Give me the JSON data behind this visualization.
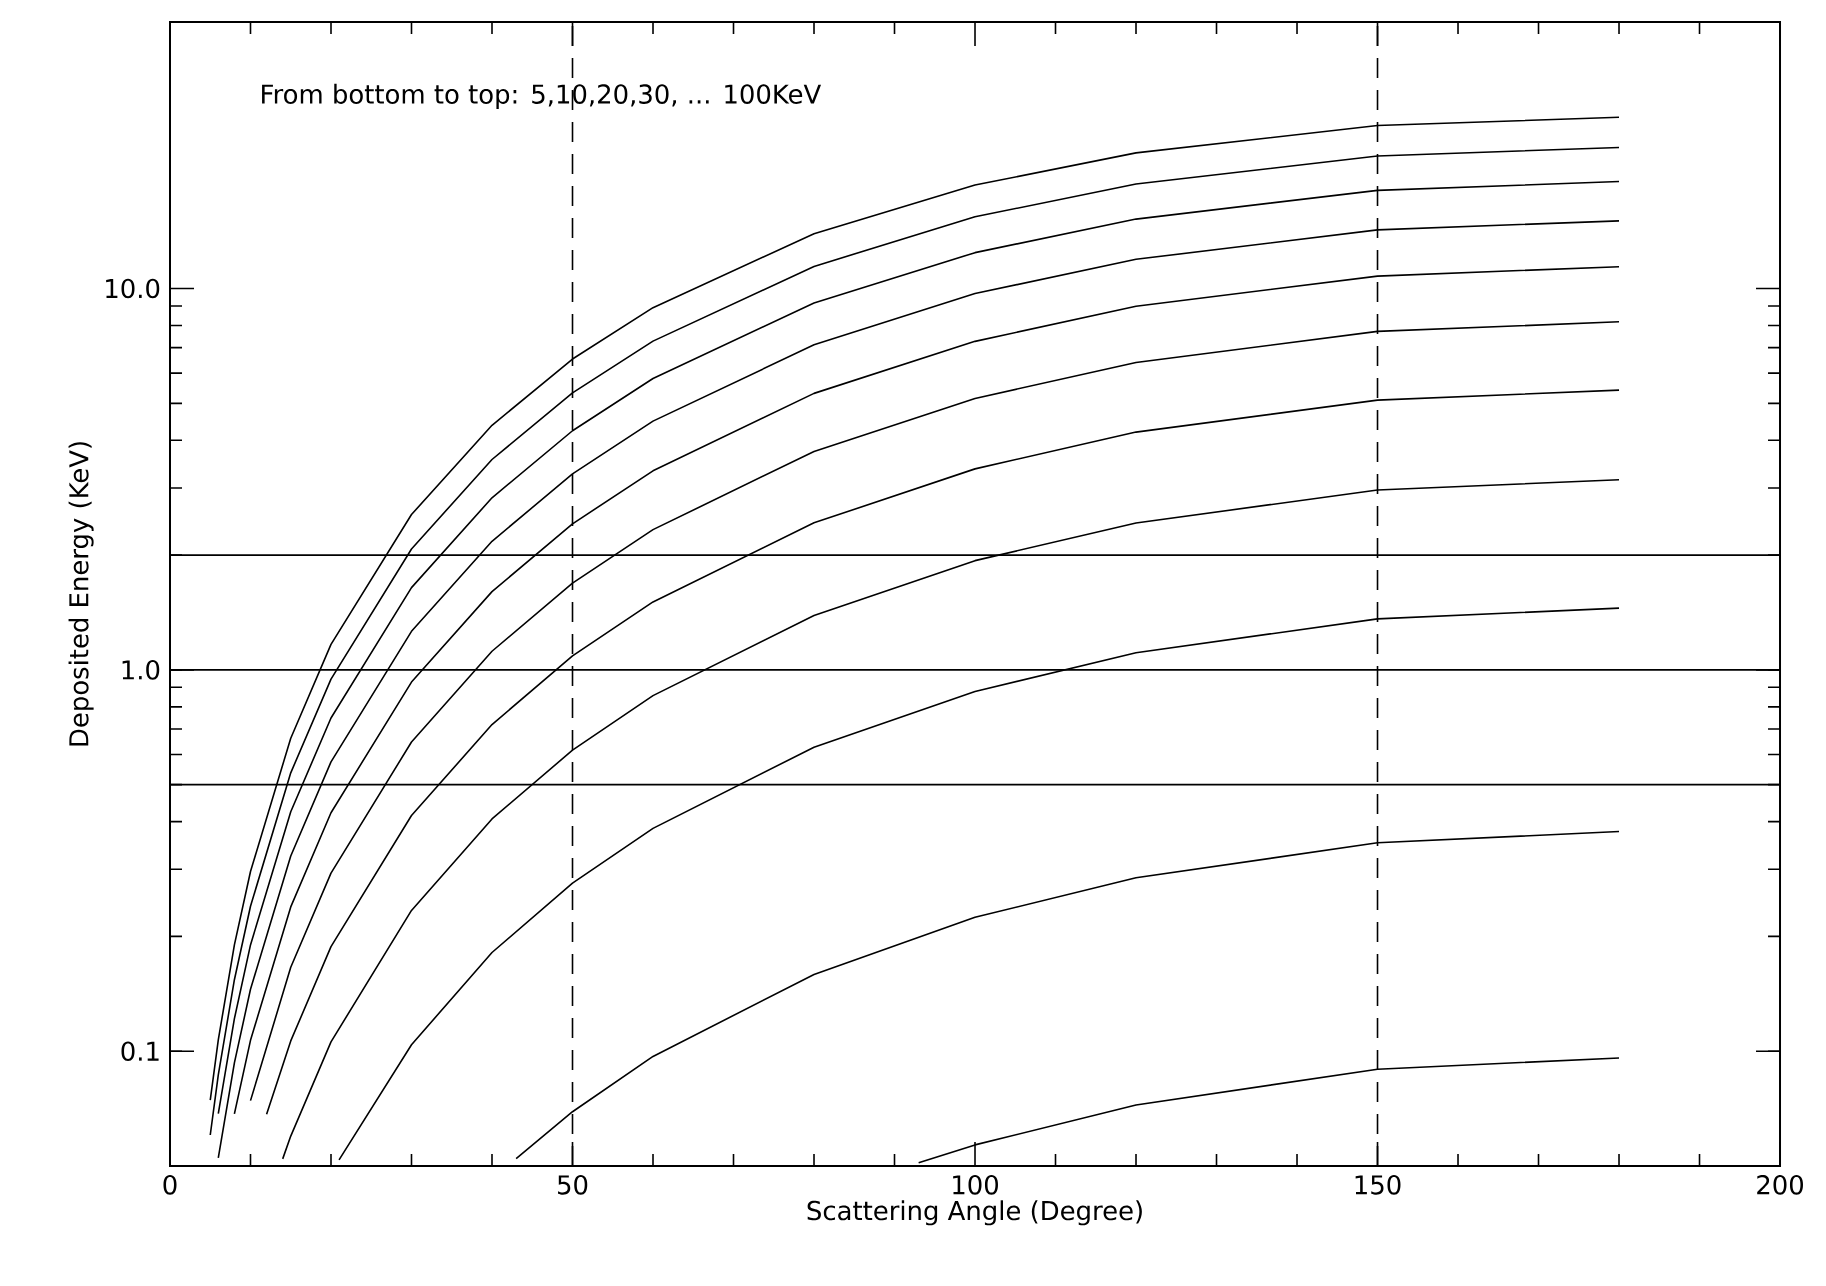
{
  "chart_data": {
    "type": "line",
    "xlabel": "Scattering Angle (Degree)",
    "ylabel": "Deposited Energy (KeV)",
    "annotations": [
      "From bottom to top: 5,10,20,30, ... 100KeV"
    ],
    "log": "y",
    "xlim": [
      0,
      200
    ],
    "ylim": [
      0.05,
      50
    ],
    "xticks": [
      0,
      50,
      100,
      150,
      200
    ],
    "yticks": [
      {
        "value": 0.1,
        "label": "0.1"
      },
      {
        "value": 1,
        "label": "1.0"
      },
      {
        "value": 10,
        "label": "10.0"
      }
    ],
    "grid": false,
    "marker": "none",
    "line_style": "solid",
    "ref_lines": [
      {
        "axis": "y",
        "value": 0.5,
        "color": "#000000",
        "line_style": "solid"
      },
      {
        "axis": "y",
        "value": 1,
        "color": "#000000",
        "line_style": "solid"
      },
      {
        "axis": "y",
        "value": 2,
        "color": "#000000",
        "line_style": "solid"
      },
      {
        "axis": "x",
        "value": 50,
        "color": "#000000",
        "line_style": "dashed"
      },
      {
        "axis": "x",
        "value": 150,
        "color": "#000000",
        "line_style": "dashed"
      }
    ],
    "series": [
      {
        "color": "#000000",
        "x": [
          93,
          100,
          120,
          150,
          180
        ],
        "values": [
          0.051,
          0.0568,
          0.0723,
          0.0897,
          0.096
        ]
      },
      {
        "color": "#000000",
        "x": [
          43,
          50,
          60,
          80,
          100,
          120,
          150,
          180
        ],
        "values": [
          0.0523,
          0.0694,
          0.0969,
          0.159,
          0.2245,
          0.285,
          0.352,
          0.377
        ]
      },
      {
        "color": "#000000",
        "x": [
          21,
          30,
          40,
          50,
          60,
          80,
          100,
          120,
          150,
          180
        ],
        "values": [
          0.0519,
          0.104,
          0.1815,
          0.276,
          0.384,
          0.627,
          0.878,
          1.109,
          1.361,
          1.452
        ]
      },
      {
        "color": "#000000",
        "x": [
          14,
          15,
          20,
          30,
          40,
          50,
          60,
          80,
          100,
          120,
          150,
          180
        ],
        "values": [
          0.0522,
          0.0599,
          0.1058,
          0.234,
          0.4065,
          0.616,
          0.856,
          1.388,
          1.934,
          2.428,
          2.962,
          3.152
        ]
      },
      {
        "color": "#000000",
        "x": [
          12,
          15,
          20,
          30,
          40,
          50,
          60,
          80,
          100,
          120,
          150,
          180
        ],
        "values": [
          0.0683,
          0.1064,
          0.188,
          0.415,
          0.719,
          1.088,
          1.507,
          2.43,
          3.366,
          4.203,
          5.098,
          5.415
        ]
      },
      {
        "color": "#000000",
        "x": [
          10,
          15,
          20,
          30,
          40,
          50,
          60,
          80,
          100,
          120,
          150,
          180
        ],
        "values": [
          0.0742,
          0.166,
          0.293,
          0.647,
          1.119,
          1.689,
          2.332,
          3.74,
          5.15,
          6.4,
          7.72,
          8.18
        ]
      },
      {
        "color": "#000000",
        "x": [
          8,
          10,
          15,
          20,
          30,
          40,
          50,
          60,
          80,
          100,
          120,
          150,
          180
        ],
        "values": [
          0.0685,
          0.1068,
          0.239,
          0.422,
          0.929,
          1.604,
          2.415,
          3.327,
          5.31,
          7.27,
          8.99,
          10.78,
          11.41
        ]
      },
      {
        "color": "#000000",
        "x": [
          6,
          8,
          10,
          15,
          20,
          30,
          40,
          50,
          60,
          80,
          100,
          120,
          150,
          180
        ],
        "values": [
          0.0525,
          0.0932,
          0.1454,
          0.325,
          0.574,
          1.262,
          2.174,
          3.265,
          4.49,
          7.12,
          9.7,
          11.93,
          14.25,
          15.05
        ]
      },
      {
        "color": "#000000",
        "x": [
          6,
          8,
          10,
          15,
          20,
          30,
          40,
          50,
          60,
          80,
          100,
          120,
          150,
          180
        ],
        "values": [
          0.0686,
          0.1217,
          0.19,
          0.4245,
          0.748,
          1.643,
          2.827,
          4.237,
          5.81,
          9.16,
          12.42,
          15.21,
          18.09,
          19.08
        ]
      },
      {
        "color": "#000000",
        "x": [
          5,
          6,
          8,
          10,
          15,
          20,
          30,
          40,
          50,
          60,
          80,
          100,
          120,
          150,
          180
        ],
        "values": [
          0.0603,
          0.0867,
          0.154,
          0.24,
          0.537,
          0.946,
          2.075,
          3.562,
          5.327,
          7.28,
          11.43,
          15.42,
          18.81,
          22.26,
          23.44
        ]
      },
      {
        "color": "#000000",
        "x": [
          5,
          6,
          8,
          10,
          15,
          20,
          30,
          40,
          50,
          60,
          80,
          100,
          120,
          150,
          180
        ],
        "values": [
          0.0744,
          0.1071,
          0.19,
          0.296,
          0.662,
          1.1665,
          2.555,
          4.378,
          6.534,
          8.91,
          13.92,
          18.68,
          22.69,
          26.75,
          28.13
        ]
      }
    ]
  }
}
